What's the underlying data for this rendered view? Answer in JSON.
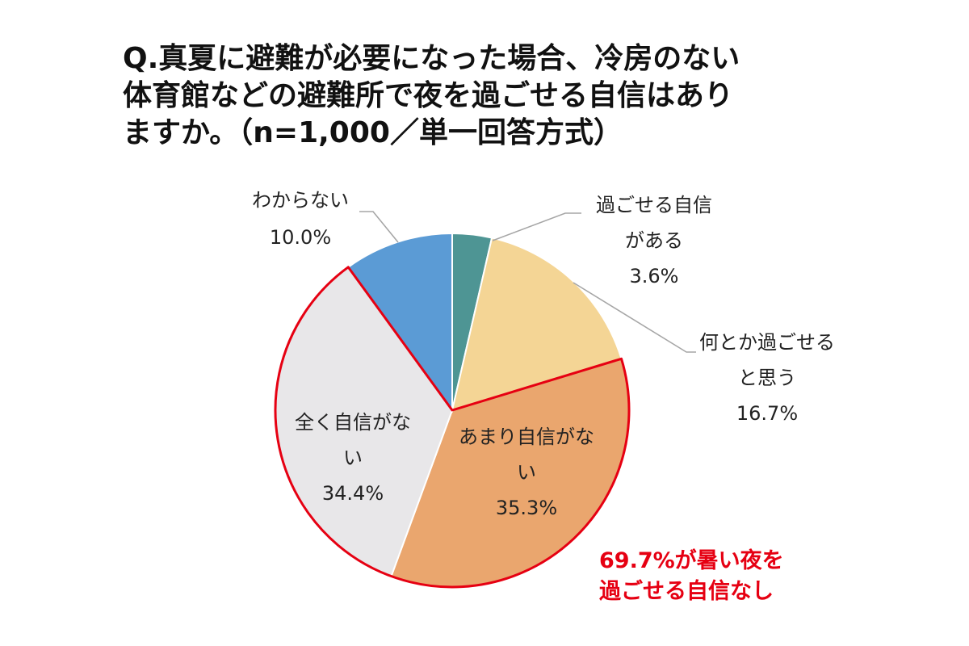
{
  "title_lines": [
    "Q.真夏に避難が必要になった場合、冷房のない",
    "体育館などの避難所で夜を過ごせる自信はあり",
    "ますか。（n=1,000／単一回答方式）"
  ],
  "chart_data": {
    "type": "pie",
    "title": "Q.真夏に避難が必要になった場合、冷房のない体育館などの避難所で夜を過ごせる自信はありますか。（n=1,000／単一回答方式）",
    "slices": [
      {
        "label_lines": [
          "過ごせる自信",
          "がある"
        ],
        "value": 3.6,
        "value_label": "3.6%",
        "color": "#4e9594",
        "highlight": false
      },
      {
        "label_lines": [
          "何とか過ごせる",
          "と思う"
        ],
        "value": 16.7,
        "value_label": "16.7%",
        "color": "#f4d595",
        "highlight": false
      },
      {
        "label_lines": [
          "あまり自信がな",
          "い"
        ],
        "value": 35.3,
        "value_label": "35.3%",
        "color": "#eaa66e",
        "highlight": true
      },
      {
        "label_lines": [
          "全く自信がな",
          "い"
        ],
        "value": 34.4,
        "value_label": "34.4%",
        "color": "#e8e7e9",
        "highlight": true
      },
      {
        "label_lines": [
          "わからない"
        ],
        "value": 10.0,
        "value_label": "10.0%",
        "color": "#5b9bd5",
        "highlight": false
      }
    ],
    "highlight_color": "#e60012",
    "leader_line_color": "#a6a6a6",
    "callout_lines": [
      "69.7%が暑い夜を",
      "過ごせる自信なし"
    ],
    "callout_color": "#e60012"
  }
}
